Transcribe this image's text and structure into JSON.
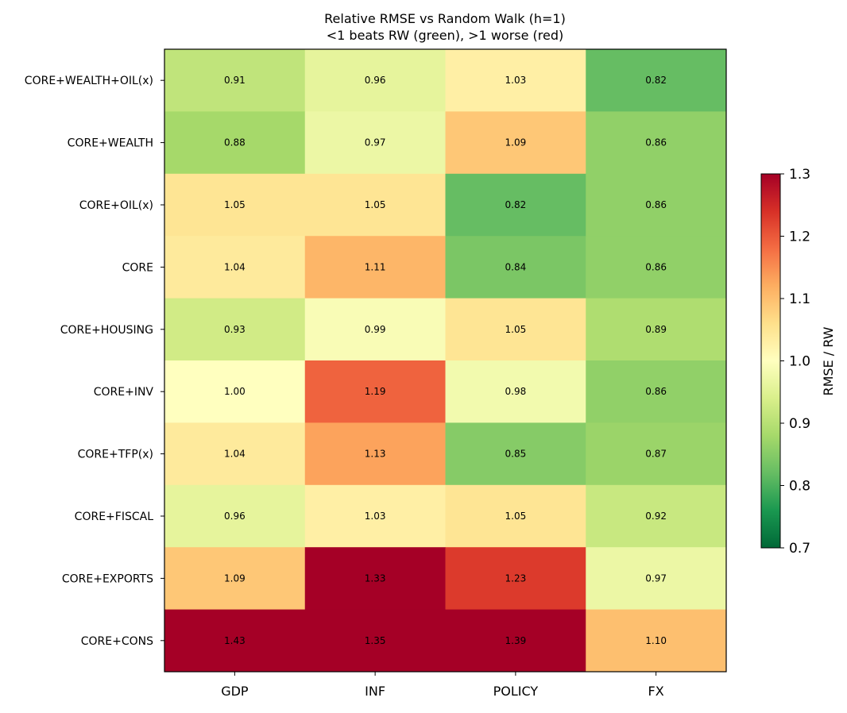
{
  "chart_data": {
    "type": "heatmap",
    "title": "Relative RMSE vs Random Walk (h=1)",
    "subtitle": "<1 beats RW (green), >1 worse (red)",
    "columns": [
      "GDP",
      "INF",
      "POLICY",
      "FX"
    ],
    "rows": [
      "CORE+WEALTH+OIL(x)",
      "CORE+WEALTH",
      "CORE+OIL(x)",
      "CORE",
      "CORE+HOUSING",
      "CORE+INV",
      "CORE+TFP(x)",
      "CORE+FISCAL",
      "CORE+EXPORTS",
      "CORE+CONS"
    ],
    "values": [
      [
        0.91,
        0.96,
        1.03,
        0.82
      ],
      [
        0.88,
        0.97,
        1.09,
        0.86
      ],
      [
        1.05,
        1.05,
        0.82,
        0.86
      ],
      [
        1.04,
        1.11,
        0.84,
        0.86
      ],
      [
        0.93,
        0.99,
        1.05,
        0.89
      ],
      [
        1.0,
        1.19,
        0.98,
        0.86
      ],
      [
        1.04,
        1.13,
        0.85,
        0.87
      ],
      [
        0.96,
        1.03,
        1.05,
        0.92
      ],
      [
        1.09,
        1.33,
        1.23,
        0.97
      ],
      [
        1.43,
        1.35,
        1.39,
        1.1
      ]
    ],
    "colorbar": {
      "label": "RMSE / RW",
      "range": [
        0.7,
        1.3
      ],
      "ticks": [
        "0.7",
        "0.8",
        "0.9",
        "1.0",
        "1.1",
        "1.2",
        "1.3"
      ],
      "colormap": "RdYlGn_r"
    }
  }
}
